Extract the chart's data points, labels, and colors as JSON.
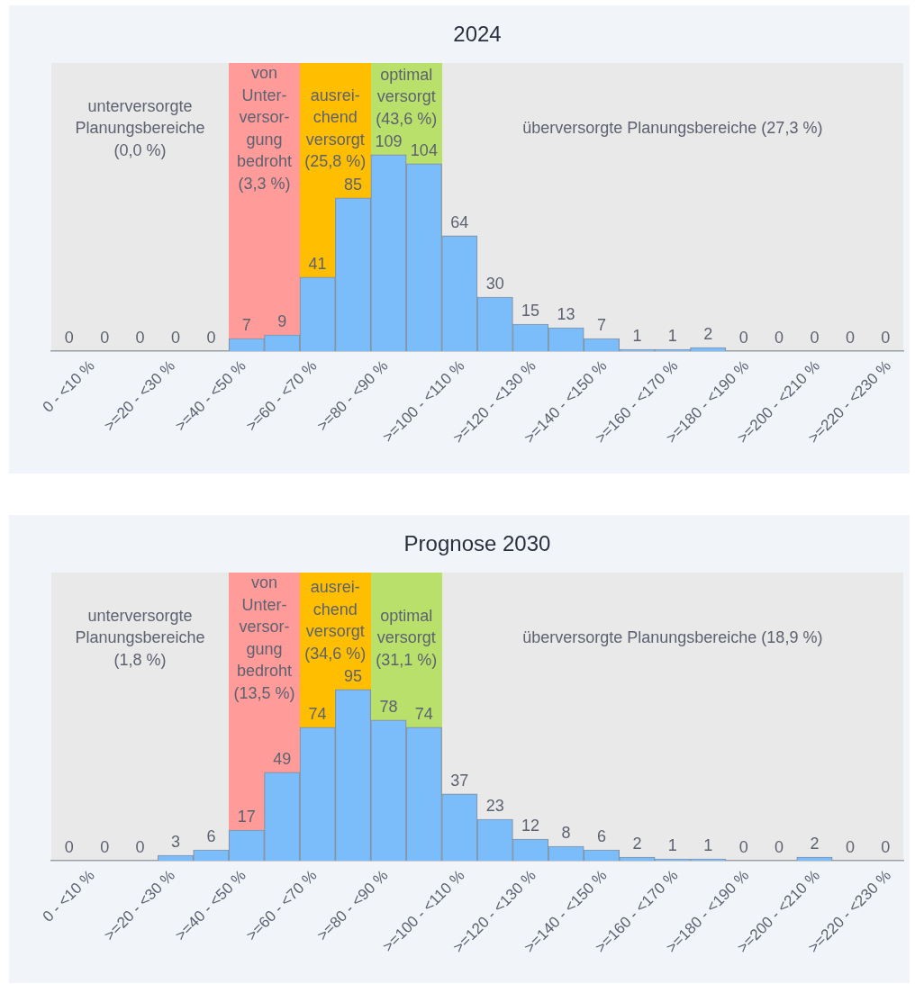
{
  "chart_data": [
    {
      "type": "bar",
      "title": "2024",
      "categories": [
        "0 - <10 %",
        null,
        ">=20 - <30 %",
        null,
        ">=40 - <50 %",
        null,
        ">=60 - <70 %",
        null,
        ">=80 - <90 %",
        null,
        ">=100 - <110 %",
        null,
        ">=120 - <130 %",
        null,
        ">=140 - <150 %",
        null,
        ">=160 - <170 %",
        null,
        ">=180 - <190 %",
        null,
        ">=200 - <210 %",
        null,
        ">=220 - <230 %",
        null
      ],
      "values": [
        0,
        0,
        0,
        0,
        0,
        7,
        9,
        41,
        85,
        109,
        104,
        64,
        30,
        15,
        13,
        7,
        1,
        1,
        2,
        0,
        0,
        0,
        0,
        0
      ],
      "color": "#7bbdfa",
      "ylim": [
        0,
        160
      ],
      "tick_labels": "x",
      "data_labels": true,
      "annotations": [
        "unterversorgte\nPlanungsbereiche\n(0,0 %)",
        "von\nUnter-\nversor-\ngung\nbedroht\n(3,3 %)",
        "ausrei-\nchend\nversorgt\n(25,8 %)",
        "optimal\nversorgt\n(43,6 %)",
        "überversorgte Planungsbereiche (27,3 %)"
      ]
    },
    {
      "type": "bar",
      "title": "Prognose 2030",
      "categories": [
        "0 - <10 %",
        null,
        ">=20 - <30 %",
        null,
        ">=40 - <50 %",
        null,
        ">=60 - <70 %",
        null,
        ">=80 - <90 %",
        null,
        ">=100 - <110 %",
        null,
        ">=120 - <130 %",
        null,
        ">=140 - <150 %",
        null,
        ">=160 - <170 %",
        null,
        ">=180 - <190 %",
        null,
        ">=200 - <210 %",
        null,
        ">=220 - <230 %",
        null
      ],
      "values": [
        0,
        0,
        0,
        3,
        6,
        17,
        49,
        74,
        95,
        78,
        74,
        37,
        23,
        12,
        8,
        6,
        2,
        1,
        1,
        0,
        0,
        2,
        0,
        0
      ],
      "color": "#7bbdfa",
      "ylim": [
        0,
        160
      ],
      "tick_labels": "x",
      "data_labels": true,
      "annotations": [
        "unterversorgte\nPlanungsbereiche\n(1,8 %)",
        "von\nUnter-\nversor-\ngung\nbedroht\n(13,5 %)",
        "ausrei-\nchend\nversorgt\n(34,6 %)",
        "optimal\nversorgt\n(31,1 %)",
        "überversorgte Planungsbereiche (18,9 %)"
      ]
    }
  ]
}
